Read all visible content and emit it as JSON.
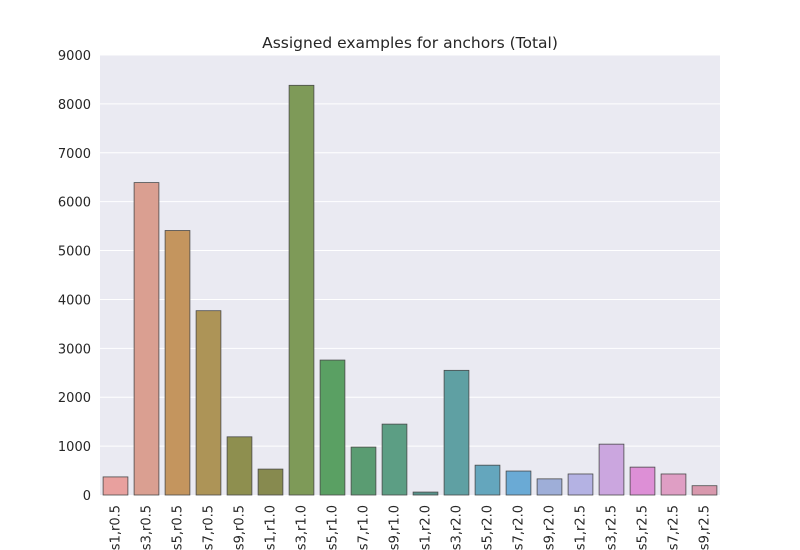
{
  "chart_data": {
    "type": "bar",
    "title": "Assigned examples for anchors (Total)",
    "xlabel": "",
    "ylabel": "",
    "ylim": [
      0,
      9000
    ],
    "yticks": [
      0,
      1000,
      2000,
      3000,
      4000,
      5000,
      6000,
      7000,
      8000,
      9000
    ],
    "grid": true,
    "background": "#eaeaf2",
    "grid_color": "#ffffff",
    "categories": [
      "s1,r0.5",
      "s3,r0.5",
      "s5,r0.5",
      "s7,r0.5",
      "s9,r0.5",
      "s1,r1.0",
      "s3,r1.0",
      "s5,r1.0",
      "s7,r1.0",
      "s9,r1.0",
      "s1,r2.0",
      "s3,r2.0",
      "s5,r2.0",
      "s7,r2.0",
      "s9,r2.0",
      "s1,r2.5",
      "s3,r2.5",
      "s5,r2.5",
      "s7,r2.5",
      "s9,r2.5"
    ],
    "values": [
      370,
      6390,
      5410,
      3770,
      1190,
      530,
      8380,
      2760,
      980,
      1450,
      60,
      2550,
      610,
      490,
      330,
      430,
      1040,
      570,
      430,
      190
    ],
    "colors": [
      "#e8a09e",
      "#da9f91",
      "#c4955e",
      "#ad9457",
      "#8e8f4f",
      "#878a4f",
      "#7e9a58",
      "#5aa063",
      "#5a9c72",
      "#5c9e84",
      "#56928a",
      "#5fa0a3",
      "#64a6bd",
      "#6aaad5",
      "#9eaed8",
      "#b4b2e3",
      "#cba6df",
      "#dd8fd6",
      "#df9ec4",
      "#d898ad"
    ]
  }
}
